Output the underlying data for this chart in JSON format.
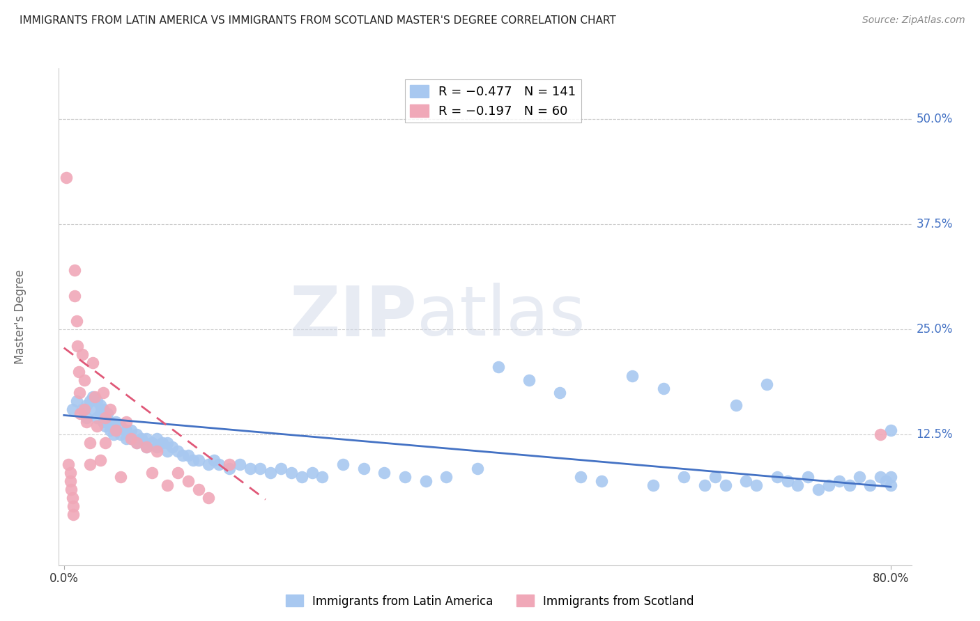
{
  "title": "IMMIGRANTS FROM LATIN AMERICA VS IMMIGRANTS FROM SCOTLAND MASTER'S DEGREE CORRELATION CHART",
  "source": "Source: ZipAtlas.com",
  "ylabel": "Master's Degree",
  "ytick_labels": [
    "50.0%",
    "37.5%",
    "25.0%",
    "12.5%"
  ],
  "ytick_values": [
    0.5,
    0.375,
    0.25,
    0.125
  ],
  "xlim": [
    -0.005,
    0.82
  ],
  "ylim": [
    -0.03,
    0.56
  ],
  "watermark_zip": "ZIP",
  "watermark_atlas": "atlas",
  "legend_blue_label": "R = −0.477   N = 141",
  "legend_pink_label": "R = −0.197   N = 60",
  "blue_color": "#a8c8f0",
  "pink_color": "#f0a8b8",
  "blue_line_color": "#4472c4",
  "pink_line_color": "#e05878",
  "blue_scatter_x": [
    0.008,
    0.012,
    0.018,
    0.022,
    0.022,
    0.025,
    0.028,
    0.028,
    0.032,
    0.032,
    0.035,
    0.035,
    0.038,
    0.038,
    0.04,
    0.04,
    0.042,
    0.045,
    0.045,
    0.048,
    0.048,
    0.05,
    0.05,
    0.055,
    0.055,
    0.06,
    0.06,
    0.065,
    0.065,
    0.07,
    0.07,
    0.075,
    0.08,
    0.08,
    0.085,
    0.09,
    0.09,
    0.095,
    0.1,
    0.1,
    0.105,
    0.11,
    0.115,
    0.12,
    0.125,
    0.13,
    0.14,
    0.145,
    0.15,
    0.16,
    0.17,
    0.18,
    0.19,
    0.2,
    0.21,
    0.22,
    0.23,
    0.24,
    0.25,
    0.27,
    0.29,
    0.31,
    0.33,
    0.35,
    0.37,
    0.4,
    0.42,
    0.45,
    0.48,
    0.5,
    0.52,
    0.55,
    0.57,
    0.58,
    0.6,
    0.62,
    0.63,
    0.64,
    0.65,
    0.66,
    0.67,
    0.68,
    0.69,
    0.7,
    0.71,
    0.72,
    0.73,
    0.74,
    0.75,
    0.76,
    0.77,
    0.78,
    0.79,
    0.795,
    0.8,
    0.8,
    0.8
  ],
  "blue_scatter_y": [
    0.155,
    0.165,
    0.155,
    0.145,
    0.16,
    0.165,
    0.155,
    0.17,
    0.145,
    0.165,
    0.15,
    0.16,
    0.14,
    0.155,
    0.135,
    0.145,
    0.15,
    0.13,
    0.14,
    0.125,
    0.135,
    0.13,
    0.14,
    0.125,
    0.135,
    0.12,
    0.13,
    0.12,
    0.13,
    0.115,
    0.125,
    0.12,
    0.11,
    0.12,
    0.115,
    0.11,
    0.12,
    0.115,
    0.105,
    0.115,
    0.11,
    0.105,
    0.1,
    0.1,
    0.095,
    0.095,
    0.09,
    0.095,
    0.09,
    0.085,
    0.09,
    0.085,
    0.085,
    0.08,
    0.085,
    0.08,
    0.075,
    0.08,
    0.075,
    0.09,
    0.085,
    0.08,
    0.075,
    0.07,
    0.075,
    0.085,
    0.205,
    0.19,
    0.175,
    0.075,
    0.07,
    0.195,
    0.065,
    0.18,
    0.075,
    0.065,
    0.075,
    0.065,
    0.16,
    0.07,
    0.065,
    0.185,
    0.075,
    0.07,
    0.065,
    0.075,
    0.06,
    0.065,
    0.07,
    0.065,
    0.075,
    0.065,
    0.075,
    0.07,
    0.065,
    0.075,
    0.13
  ],
  "pink_scatter_x": [
    0.002,
    0.004,
    0.006,
    0.006,
    0.007,
    0.008,
    0.009,
    0.009,
    0.01,
    0.01,
    0.012,
    0.013,
    0.014,
    0.015,
    0.016,
    0.018,
    0.02,
    0.02,
    0.022,
    0.025,
    0.025,
    0.028,
    0.03,
    0.032,
    0.035,
    0.038,
    0.04,
    0.04,
    0.045,
    0.05,
    0.055,
    0.06,
    0.065,
    0.07,
    0.08,
    0.085,
    0.09,
    0.1,
    0.11,
    0.12,
    0.13,
    0.14,
    0.16,
    0.79
  ],
  "pink_scatter_y": [
    0.43,
    0.09,
    0.08,
    0.07,
    0.06,
    0.05,
    0.04,
    0.03,
    0.32,
    0.29,
    0.26,
    0.23,
    0.2,
    0.175,
    0.15,
    0.22,
    0.19,
    0.155,
    0.14,
    0.115,
    0.09,
    0.21,
    0.17,
    0.135,
    0.095,
    0.175,
    0.145,
    0.115,
    0.155,
    0.13,
    0.075,
    0.14,
    0.12,
    0.115,
    0.11,
    0.08,
    0.105,
    0.065,
    0.08,
    0.07,
    0.06,
    0.05,
    0.09,
    0.125
  ],
  "blue_trend_x": [
    0.0,
    0.8
  ],
  "blue_trend_y": [
    0.148,
    0.063
  ],
  "pink_trend_x": [
    0.0,
    0.195
  ],
  "pink_trend_y": [
    0.228,
    0.048
  ]
}
